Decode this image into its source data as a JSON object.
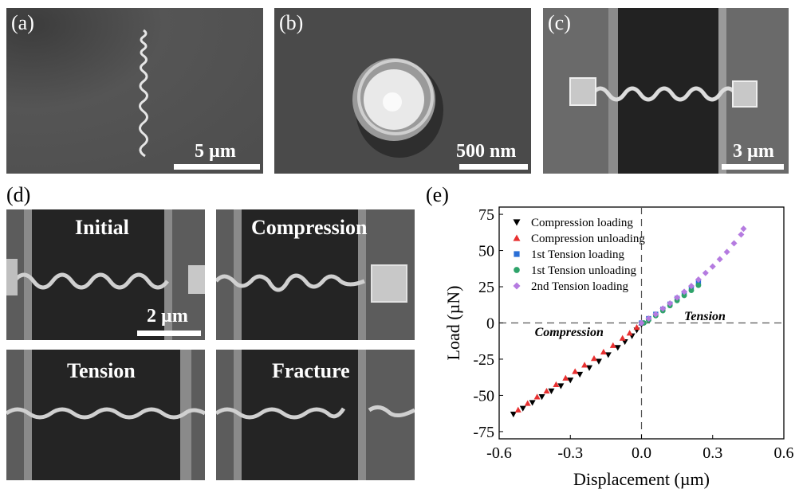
{
  "panel_a": {
    "label": "(a)",
    "scalebar": "5 µm"
  },
  "panel_b": {
    "label": "(b)",
    "scalebar": "500 nm"
  },
  "panel_c": {
    "label": "(c)",
    "scalebar": "3 µm"
  },
  "panel_d": {
    "label": "(d)",
    "subpanels": [
      "Initial",
      "Compression",
      "Tension",
      "Fracture"
    ],
    "scalebar": "2 µm"
  },
  "panel_e": {
    "label": "(e)"
  },
  "chart_data": {
    "type": "scatter",
    "xlabel": "Displacement (µm)",
    "ylabel": "Load (µN)",
    "xlim": [
      -0.6,
      0.6
    ],
    "ylim": [
      -80,
      80
    ],
    "xticks": [
      -0.6,
      -0.3,
      0.0,
      0.3,
      0.6
    ],
    "xtick_labels": [
      "-0.6",
      "-0.3",
      "0.0",
      "0.3",
      "0.6"
    ],
    "yticks": [
      -75,
      -50,
      -25,
      0,
      25,
      50,
      75
    ],
    "ytick_labels": [
      "-75",
      "-50",
      "-25",
      "0",
      "25",
      "50",
      "75"
    ],
    "legend_position": "top-left",
    "annotations": {
      "compression": "Compression",
      "tension": "Tension"
    },
    "series": [
      {
        "name": "Compression loading",
        "marker": "triangle-down",
        "color": "#000000",
        "x": [
          -0.54,
          -0.5,
          -0.46,
          -0.42,
          -0.38,
          -0.34,
          -0.3,
          -0.26,
          -0.22,
          -0.18,
          -0.14,
          -0.1,
          -0.07,
          -0.04,
          -0.02,
          0.0
        ],
        "y": [
          -63,
          -59,
          -55,
          -51,
          -47,
          -43.5,
          -39.5,
          -35.5,
          -31,
          -26.5,
          -22,
          -17,
          -13,
          -9,
          -5,
          -1
        ]
      },
      {
        "name": "Compression unloading",
        "marker": "triangle-up",
        "color": "#e83030",
        "x": [
          -0.52,
          -0.48,
          -0.44,
          -0.4,
          -0.36,
          -0.32,
          -0.28,
          -0.24,
          -0.2,
          -0.16,
          -0.12,
          -0.08,
          -0.05,
          -0.02,
          0.0
        ],
        "y": [
          -60,
          -55.5,
          -51,
          -47,
          -42.5,
          -38,
          -33.5,
          -29,
          -24.5,
          -20,
          -15.5,
          -10.5,
          -7,
          -3,
          0
        ]
      },
      {
        "name": "1st Tension loading",
        "marker": "square",
        "color": "#2a6fd6",
        "x": [
          0.0,
          0.03,
          0.06,
          0.09,
          0.12,
          0.15,
          0.18,
          0.21,
          0.24
        ],
        "y": [
          0,
          3,
          6,
          9.5,
          13,
          17,
          20.5,
          24,
          28
        ]
      },
      {
        "name": "1st Tension unloading",
        "marker": "circle",
        "color": "#2ea36a",
        "x": [
          0.24,
          0.21,
          0.18,
          0.15,
          0.12,
          0.09,
          0.06,
          0.03,
          0.01
        ],
        "y": [
          26,
          22.5,
          19,
          15.5,
          12,
          8.5,
          5,
          2,
          0
        ]
      },
      {
        "name": "2nd Tension loading",
        "marker": "diamond",
        "color": "#b57be0",
        "x": [
          0.0,
          0.03,
          0.06,
          0.09,
          0.12,
          0.15,
          0.18,
          0.21,
          0.24,
          0.27,
          0.3,
          0.33,
          0.36,
          0.39,
          0.42,
          0.43
        ],
        "y": [
          0,
          3,
          6,
          10,
          13.5,
          17.5,
          21.5,
          25.5,
          30,
          34.5,
          39,
          44,
          49,
          55,
          61,
          65
        ]
      }
    ]
  }
}
